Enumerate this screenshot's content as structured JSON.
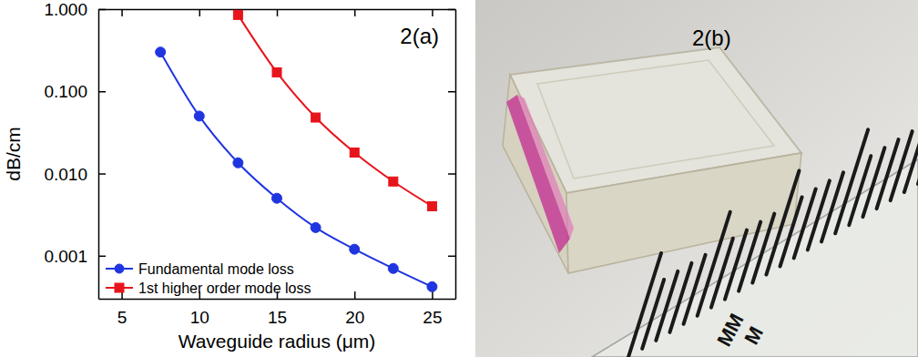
{
  "chart_data": {
    "type": "line",
    "annotation": "2(a)",
    "x_label": "Waveguide radius (μm)",
    "y_label": "dB/cm",
    "log": "y",
    "grid": false,
    "legend": "lower left",
    "xlim": [
      3.5,
      26.5
    ],
    "xticks": [
      5,
      10,
      15,
      20,
      25
    ],
    "ylim": [
      0.0003,
      1
    ],
    "yticks": [
      {
        "value": 0.001,
        "label": "0.001"
      },
      {
        "value": 0.01,
        "label": "0.010"
      },
      {
        "value": 0.1,
        "label": "0.100"
      },
      {
        "value": 1,
        "label": "1.000"
      }
    ],
    "series": [
      {
        "name": "Fundamental mode loss",
        "color": "#1f35e0",
        "marker": "circle",
        "line_style": "solid",
        "x": [
          7.5,
          10,
          12.5,
          15,
          17.5,
          20,
          22.5,
          25
        ],
        "values": [
          0.3,
          0.05,
          0.0135,
          0.005,
          0.0022,
          0.0012,
          0.0007,
          0.00042
        ]
      },
      {
        "name": "1st higher order mode loss",
        "color": "#e8141b",
        "marker": "square",
        "line_style": "solid",
        "x": [
          12.5,
          15,
          17.5,
          20,
          22.5,
          25
        ],
        "values": [
          0.85,
          0.17,
          0.048,
          0.018,
          0.008,
          0.004
        ]
      }
    ]
  },
  "photo": {
    "label": "2(b)",
    "ruler_labels": [
      "MM",
      "M"
    ]
  }
}
